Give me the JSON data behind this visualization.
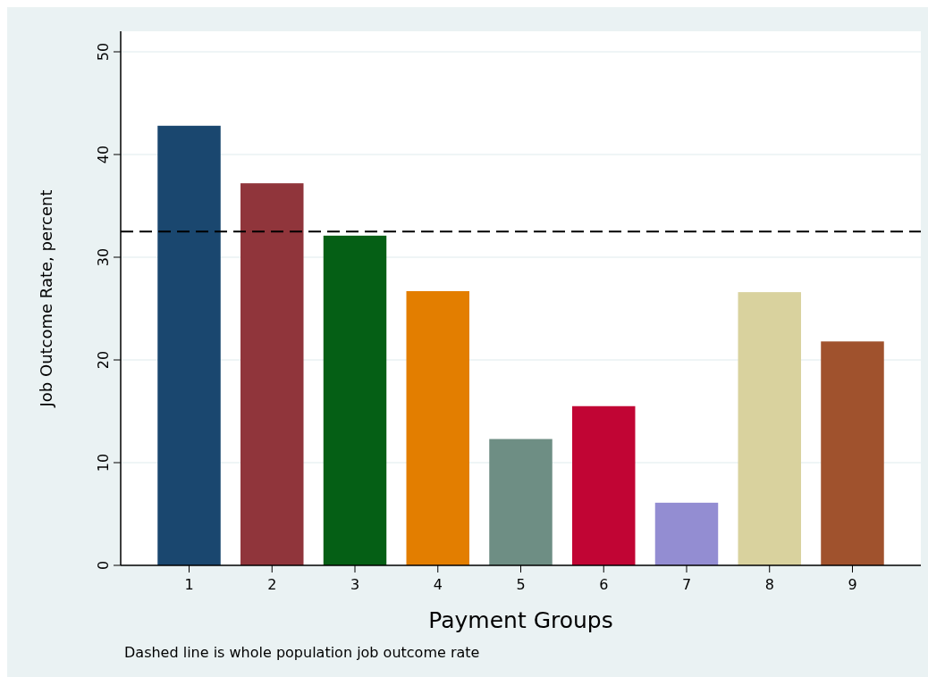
{
  "chart_data": {
    "type": "bar",
    "xlabel": "Payment Groups",
    "ylabel": "Job Outcome Rate, percent",
    "categories": [
      "1",
      "2",
      "3",
      "4",
      "5",
      "6",
      "7",
      "8",
      "9"
    ],
    "values": [
      42.8,
      37.2,
      32.1,
      26.7,
      12.3,
      15.5,
      6.1,
      26.6,
      21.8
    ],
    "colors": [
      "#1a476f",
      "#90353b",
      "#055f15",
      "#e37e00",
      "#6e8e84",
      "#c10534",
      "#938dd2",
      "#d9d29e",
      "#a0522d"
    ],
    "ylim": [
      0,
      52
    ],
    "yticks": [
      0,
      10,
      20,
      30,
      40,
      50
    ],
    "grid": "y",
    "ref_lines": [
      {
        "axis": "y",
        "value": 32.5,
        "color": "#000000",
        "line_style": "dashed"
      }
    ],
    "annotations": [
      "Dashed line is whole population job outcome rate"
    ]
  }
}
